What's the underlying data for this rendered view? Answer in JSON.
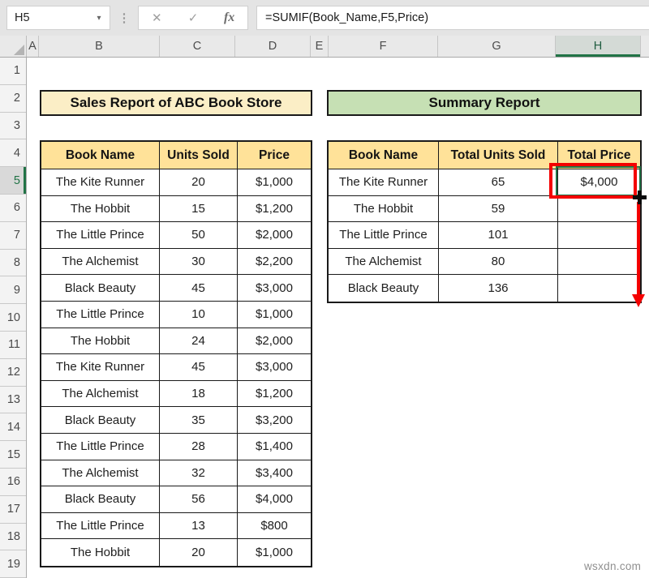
{
  "formula_bar": {
    "name_box": "H5",
    "formula": "=SUMIF(Book_Name,F5,Price)",
    "cancel_icon": "✕",
    "enter_icon": "✓",
    "fx_icon": "fx",
    "more_icon": "⋮",
    "namebox_dropdown_icon": "▾"
  },
  "sheet": {
    "columns": [
      "A",
      "B",
      "C",
      "D",
      "E",
      "F",
      "G",
      "H"
    ],
    "selected_column": "H",
    "rows": [
      "1",
      "2",
      "3",
      "4",
      "5",
      "6",
      "7",
      "8",
      "9",
      "10",
      "11",
      "12",
      "13",
      "14",
      "15",
      "16",
      "17",
      "18",
      "19"
    ],
    "selected_row": "5",
    "selected_cell": "H5"
  },
  "sales_table": {
    "title": "Sales Report of ABC Book Store",
    "headers": [
      "Book Name",
      "Units Sold",
      "Price"
    ],
    "rows": [
      [
        "The Kite Runner",
        "20",
        "$1,000"
      ],
      [
        "The Hobbit",
        "15",
        "$1,200"
      ],
      [
        "The Little Prince",
        "50",
        "$2,000"
      ],
      [
        "The Alchemist",
        "30",
        "$2,200"
      ],
      [
        "Black Beauty",
        "45",
        "$3,000"
      ],
      [
        "The Little Prince",
        "10",
        "$1,000"
      ],
      [
        "The Hobbit",
        "24",
        "$2,000"
      ],
      [
        "The Kite Runner",
        "45",
        "$3,000"
      ],
      [
        "The Alchemist",
        "18",
        "$1,200"
      ],
      [
        "Black Beauty",
        "35",
        "$3,200"
      ],
      [
        "The Little Prince",
        "28",
        "$1,400"
      ],
      [
        "The Alchemist",
        "32",
        "$3,400"
      ],
      [
        "Black Beauty",
        "56",
        "$4,000"
      ],
      [
        "The Little Prince",
        "13",
        "$800"
      ],
      [
        "The Hobbit",
        "20",
        "$1,000"
      ]
    ]
  },
  "summary_table": {
    "title": "Summary Report",
    "headers": [
      "Book Name",
      "Total Units Sold",
      "Total Price"
    ],
    "rows": [
      [
        "The Kite Runner",
        "65",
        "$4,000"
      ],
      [
        "The Hobbit",
        "59",
        ""
      ],
      [
        "The Little Prince",
        "101",
        ""
      ],
      [
        "The Alchemist",
        "80",
        ""
      ],
      [
        "Black Beauty",
        "136",
        ""
      ]
    ]
  },
  "annotations": {
    "watermark": "wsxdn.com"
  },
  "colors": {
    "accent_red": "#F40000",
    "selection_green": "#217346",
    "table_header_fill": "#FFE299",
    "sales_title_fill": "#FBEEC6",
    "summary_title_fill": "#C6E0B4"
  }
}
